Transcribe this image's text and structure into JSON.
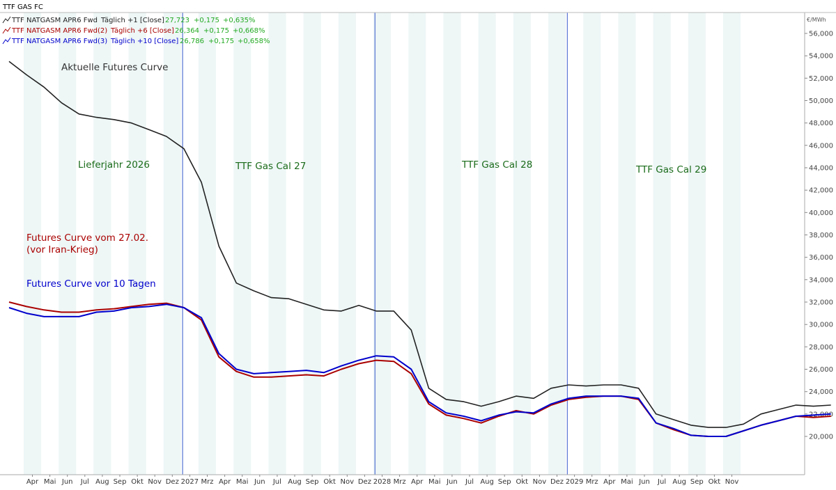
{
  "window_title": "TTF GAS FC",
  "legend": [
    {
      "series": "TTF NATGASM APR6 Fwd",
      "detail": "Täglich +1 [Close]",
      "value": "27,723",
      "change": "+0,175",
      "pct": "+0,635%",
      "color": "#222222"
    },
    {
      "series": "TTF NATGASM APR6 Fwd(2)",
      "detail": "Täglich +6 [Close]",
      "value": "26,364",
      "change": "+0,175",
      "pct": "+0,668%",
      "color": "#aa0000"
    },
    {
      "series": "TTF NATGASM APR6 Fwd(3)",
      "detail": "Täglich +10 [Close]",
      "value": "26,786",
      "change": "+0,175",
      "pct": "+0,658%",
      "color": "#0000cc"
    }
  ],
  "annotations": {
    "current_curve": "Aktuelle Futures Curve",
    "curve_2702_line1": "Futures Curve vom 27.02.",
    "curve_2702_line2": "(vor Iran-Krieg)",
    "curve_10days": "Futures Curve vor 10 Tagen",
    "period_2026": "Lieferjahr 2026",
    "period_2027": "TTF Gas Cal 27",
    "period_2028": "TTF Gas Cal 28",
    "period_2029": "TTF Gas Cal 29"
  },
  "colors": {
    "current": "#222222",
    "before_war": "#aa0000",
    "ten_days": "#0000cc",
    "annotation_green": "#1a6b1a",
    "annotation_dark": "#333333",
    "legend_value_green": "#22aa22",
    "band": "#eef6f6",
    "year_divider": "#3355cc"
  },
  "chart_data": {
    "type": "line",
    "y_axis_unit": "€/MWh",
    "y_ticks": [
      "20,000",
      "22,000",
      "24,000",
      "26,000",
      "28,000",
      "30,000",
      "32,000",
      "34,000",
      "36,000",
      "38,000",
      "40,000",
      "42,000",
      "44,000",
      "46,000",
      "48,000",
      "50,000",
      "52,000",
      "54,000",
      "56,000"
    ],
    "ylim": [
      18.0,
      57.5
    ],
    "x_labels": [
      "Apr",
      "Mai",
      "Jun",
      "Jul",
      "Aug",
      "Sep",
      "Okt",
      "Nov",
      "Dez",
      "2027",
      "Mrz",
      "Apr",
      "Mai",
      "Jun",
      "Jul",
      "Aug",
      "Sep",
      "Okt",
      "Nov",
      "Dez",
      "2028",
      "Mrz",
      "Apr",
      "Mai",
      "Jun",
      "Jul",
      "Aug",
      "Sep",
      "Okt",
      "Nov",
      "Dez",
      "2029",
      "Mrz",
      "Apr",
      "Mai",
      "Jun",
      "Jul",
      "Aug",
      "Sep",
      "Okt",
      "Nov"
    ],
    "year_dividers": [
      "2027",
      "2028",
      "2029"
    ],
    "grid": false,
    "series": [
      {
        "name": "TTF NATGASM APR6 Fwd",
        "color": "#222222",
        "values": [
          53.5,
          52.3,
          51.2,
          49.8,
          48.8,
          48.5,
          48.3,
          48.0,
          47.4,
          46.8,
          45.7,
          42.7,
          37.0,
          33.7,
          33.0,
          32.4,
          32.3,
          31.8,
          31.3,
          31.2,
          31.7,
          31.2,
          31.2,
          29.5,
          24.3,
          23.3,
          23.1,
          22.7,
          23.1,
          23.6,
          23.4,
          24.3,
          24.6,
          24.5,
          24.6,
          24.6,
          24.3,
          22.0,
          21.5,
          21.0,
          20.8,
          20.8,
          21.1,
          22.0,
          22.4,
          22.8,
          22.7,
          22.8
        ]
      },
      {
        "name": "TTF NATGASM APR6 Fwd(2)",
        "color": "#aa0000",
        "values": [
          32.0,
          31.6,
          31.3,
          31.1,
          31.1,
          31.3,
          31.4,
          31.6,
          31.8,
          31.9,
          31.5,
          30.4,
          27.1,
          25.8,
          25.3,
          25.3,
          25.4,
          25.5,
          25.4,
          26.0,
          26.5,
          26.8,
          26.7,
          25.6,
          22.9,
          21.9,
          21.6,
          21.2,
          21.8,
          22.3,
          22.0,
          22.8,
          23.3,
          23.5,
          23.6,
          23.6,
          23.3,
          21.2,
          20.6,
          20.1,
          20.0,
          20.0,
          20.5,
          21.0,
          21.4,
          21.8,
          21.7,
          21.8
        ]
      },
      {
        "name": "TTF NATGASM APR6 Fwd(3)",
        "color": "#0000cc",
        "values": [
          31.5,
          31.0,
          30.7,
          30.7,
          30.7,
          31.1,
          31.2,
          31.5,
          31.6,
          31.8,
          31.5,
          30.6,
          27.4,
          26.0,
          25.6,
          25.7,
          25.8,
          25.9,
          25.7,
          26.3,
          26.8,
          27.2,
          27.1,
          26.0,
          23.1,
          22.1,
          21.8,
          21.4,
          21.9,
          22.2,
          22.1,
          22.9,
          23.4,
          23.6,
          23.6,
          23.6,
          23.4,
          21.2,
          20.7,
          20.1,
          20.0,
          20.0,
          20.5,
          21.0,
          21.4,
          21.8,
          21.9,
          22.0
        ]
      }
    ]
  }
}
